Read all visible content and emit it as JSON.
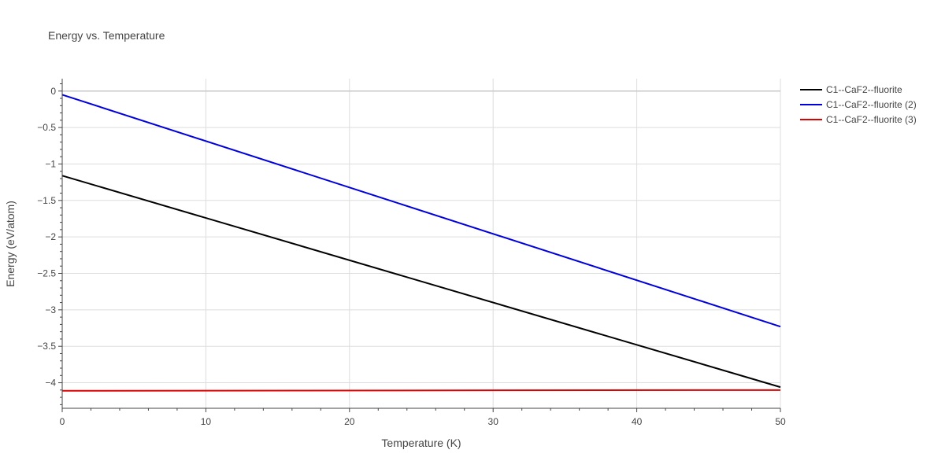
{
  "chart_data": {
    "type": "line",
    "title": "Energy vs. Temperature",
    "xlabel": "Temperature (K)",
    "ylabel": "Energy (eV/atom)",
    "xlim": [
      0,
      50
    ],
    "ylim": [
      -4.35,
      0.17
    ],
    "x_ticks": [
      0,
      10,
      20,
      30,
      40,
      50
    ],
    "x_tick_labels": [
      "0",
      "10",
      "20",
      "30",
      "40",
      "50"
    ],
    "y_ticks": [
      0,
      -0.5,
      -1,
      -1.5,
      -2,
      -2.5,
      -3,
      -3.5,
      -4
    ],
    "y_tick_labels": [
      "0",
      "−0.5",
      "−1",
      "−1.5",
      "−2",
      "−2.5",
      "−3",
      "−3.5",
      "−4"
    ],
    "grid": true,
    "legend_position": "top-right",
    "series": [
      {
        "name": "C1--CaF2--fluorite",
        "color": "#000000",
        "x": [
          0,
          50
        ],
        "y": [
          -1.16,
          -4.06
        ]
      },
      {
        "name": "C1--CaF2--fluorite (2)",
        "color": "#0000dd",
        "x": [
          0,
          50
        ],
        "y": [
          -0.05,
          -3.23
        ]
      },
      {
        "name": "C1--CaF2--fluorite (3)",
        "color": "#dd0000",
        "x": [
          0,
          50
        ],
        "y": [
          -4.11,
          -4.1
        ]
      }
    ]
  }
}
